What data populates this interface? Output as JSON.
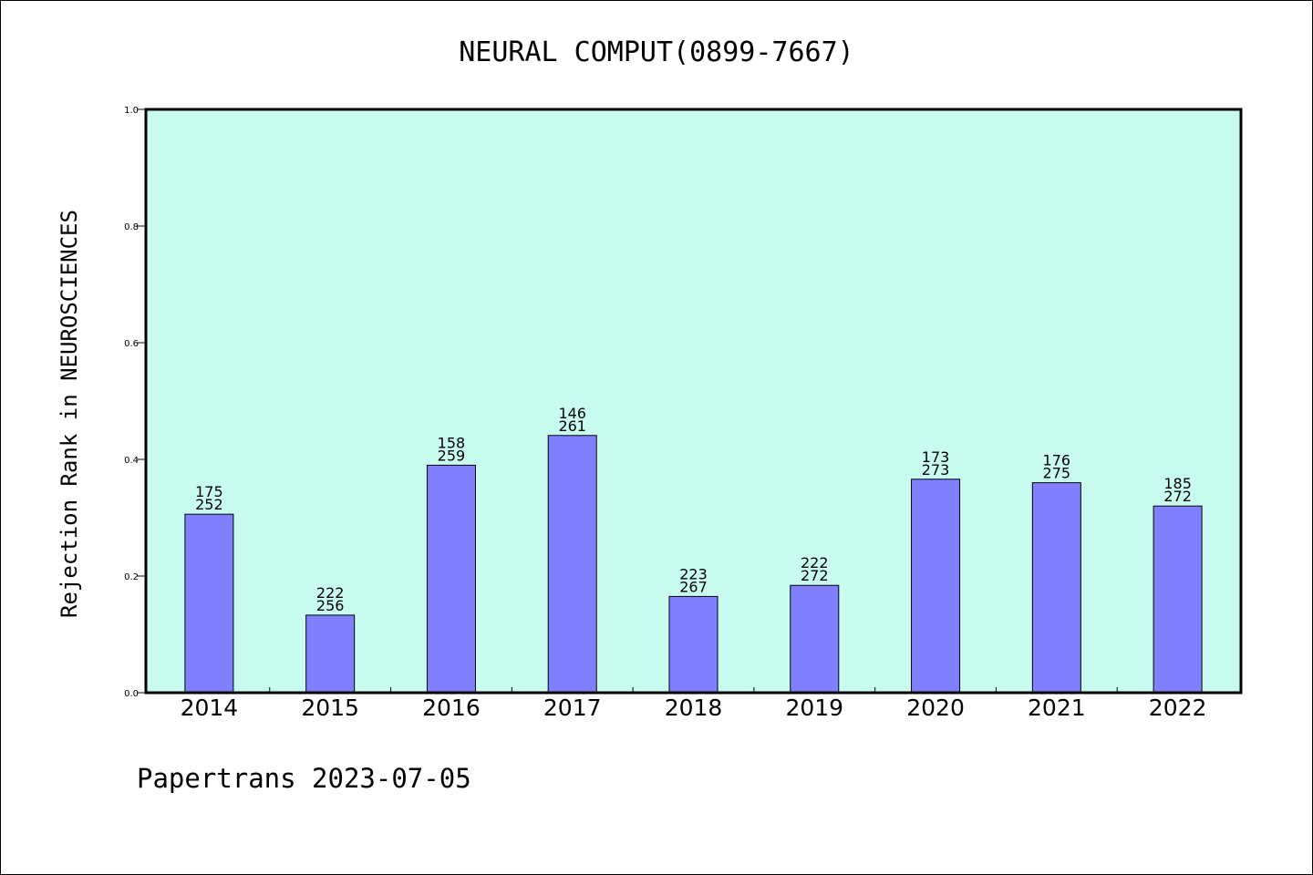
{
  "chart_data": {
    "type": "bar",
    "title": "NEURAL COMPUT(0899-7667)",
    "xlabel": "",
    "ylabel": "Rejection Rank in NEUROSCIENCES",
    "ylim": [
      0,
      1.0
    ],
    "yticks": [
      "0.0",
      "0.2",
      "0.4",
      "0.6",
      "0.8",
      "1.0"
    ],
    "categories": [
      "2014",
      "2015",
      "2016",
      "2017",
      "2018",
      "2019",
      "2020",
      "2021",
      "2022"
    ],
    "values": [
      0.306,
      0.133,
      0.39,
      0.441,
      0.165,
      0.184,
      0.366,
      0.36,
      0.32
    ],
    "label_top": [
      "175",
      "222",
      "158",
      "146",
      "223",
      "222",
      "173",
      "176",
      "185"
    ],
    "label_bottom": [
      "252",
      "256",
      "259",
      "261",
      "267",
      "272",
      "273",
      "275",
      "272"
    ],
    "grid": false,
    "colors": {
      "plot_background": "#c8fcee",
      "bar_fill": "#8080ff",
      "bar_stroke": "#000000"
    }
  },
  "footer": {
    "text": "Papertrans 2023-07-05"
  }
}
